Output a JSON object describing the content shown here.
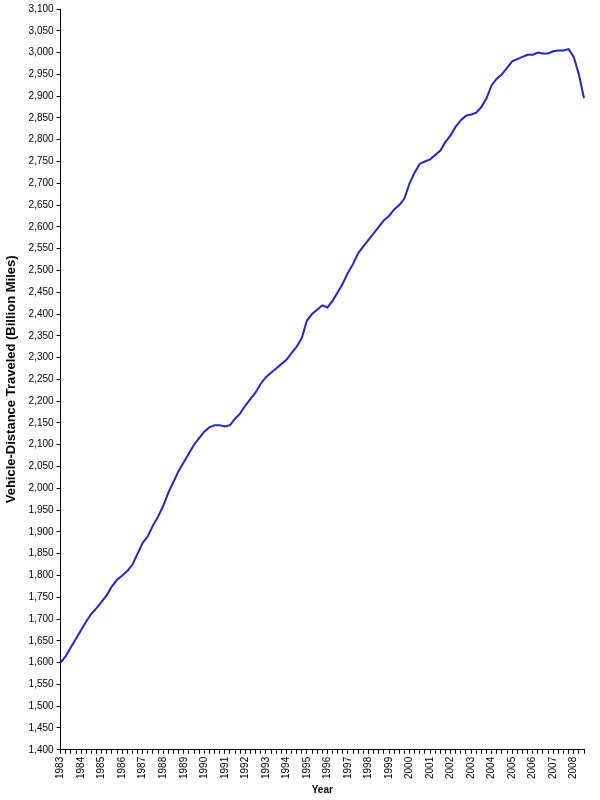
{
  "chart_data": {
    "type": "line",
    "y_label": "Vehicle-Distance Traveled (Billion Miles)",
    "x_label": "Year",
    "color": "#2424d4",
    "grid": false,
    "ylim": [
      1400,
      3100
    ],
    "yticks": [
      {
        "value": 1400,
        "label": "1,400"
      },
      {
        "value": 1450,
        "label": "1,450"
      },
      {
        "value": 1500,
        "label": "1,500"
      },
      {
        "value": 1550,
        "label": "1,550"
      },
      {
        "value": 1600,
        "label": "1,600"
      },
      {
        "value": 1650,
        "label": "1,650"
      },
      {
        "value": 1700,
        "label": "1,700"
      },
      {
        "value": 1750,
        "label": "1,750"
      },
      {
        "value": 1800,
        "label": "1,800"
      },
      {
        "value": 1850,
        "label": "1,850"
      },
      {
        "value": 1900,
        "label": "1,900"
      },
      {
        "value": 1950,
        "label": "1,950"
      },
      {
        "value": 2000,
        "label": "2,000"
      },
      {
        "value": 2050,
        "label": "2,050"
      },
      {
        "value": 2100,
        "label": "2,100"
      },
      {
        "value": 2150,
        "label": "2,150"
      },
      {
        "value": 2200,
        "label": "2,200"
      },
      {
        "value": 2250,
        "label": "2,250"
      },
      {
        "value": 2300,
        "label": "2,300"
      },
      {
        "value": 2350,
        "label": "2,350"
      },
      {
        "value": 2400,
        "label": "2,400"
      },
      {
        "value": 2450,
        "label": "2,450"
      },
      {
        "value": 2500,
        "label": "2,500"
      },
      {
        "value": 2550,
        "label": "2,550"
      },
      {
        "value": 2600,
        "label": "2,600"
      },
      {
        "value": 2650,
        "label": "2,650"
      },
      {
        "value": 2700,
        "label": "2,700"
      },
      {
        "value": 2750,
        "label": "2,750"
      },
      {
        "value": 2800,
        "label": "2,800"
      },
      {
        "value": 2850,
        "label": "2,850"
      },
      {
        "value": 2900,
        "label": "2,900"
      },
      {
        "value": 2950,
        "label": "2,950"
      },
      {
        "value": 3000,
        "label": "3,000"
      },
      {
        "value": 3050,
        "label": "3,050"
      },
      {
        "value": 3100,
        "label": "3,100"
      }
    ],
    "categories": [
      "1983",
      null,
      null,
      null,
      "1984",
      null,
      null,
      null,
      "1985",
      null,
      null,
      null,
      "1986",
      null,
      null,
      null,
      "1987",
      null,
      null,
      null,
      "1988",
      null,
      null,
      null,
      "1989",
      null,
      null,
      null,
      "1990",
      null,
      null,
      null,
      "1991",
      null,
      null,
      null,
      "1992",
      null,
      null,
      null,
      "1993",
      null,
      null,
      null,
      "1994",
      null,
      null,
      null,
      "1995",
      null,
      null,
      null,
      "1996",
      null,
      null,
      null,
      "1997",
      null,
      null,
      null,
      "1998",
      null,
      null,
      null,
      "1999",
      null,
      null,
      null,
      "2000",
      null,
      null,
      null,
      "2001",
      null,
      null,
      null,
      "2002",
      null,
      null,
      null,
      "2003",
      null,
      null,
      null,
      "2004",
      null,
      null,
      null,
      "2005",
      null,
      null,
      null,
      "2006",
      null,
      null,
      null,
      "2007",
      null,
      null,
      null,
      "2008",
      null,
      null
    ],
    "values": [
      1600,
      1615,
      1635,
      1655,
      1675,
      1695,
      1712,
      1725,
      1740,
      1755,
      1775,
      1790,
      1800,
      1810,
      1825,
      1850,
      1875,
      1890,
      1915,
      1935,
      1960,
      1990,
      2015,
      2040,
      2060,
      2080,
      2100,
      2115,
      2130,
      2140,
      2145,
      2145,
      2142,
      2145,
      2160,
      2172,
      2190,
      2205,
      2220,
      2240,
      2255,
      2265,
      2275,
      2285,
      2295,
      2310,
      2325,
      2345,
      2385,
      2400,
      2410,
      2420,
      2415,
      2430,
      2450,
      2470,
      2495,
      2515,
      2540,
      2555,
      2570,
      2585,
      2600,
      2615,
      2625,
      2640,
      2650,
      2665,
      2700,
      2725,
      2745,
      2750,
      2755,
      2765,
      2775,
      2795,
      2810,
      2830,
      2845,
      2855,
      2858,
      2862,
      2875,
      2895,
      2925,
      2940,
      2950,
      2965,
      2980,
      2985,
      2990,
      2995,
      2995,
      3000,
      2998,
      2998,
      3003,
      3005,
      3005,
      3008,
      2990,
      2950,
      2895
    ]
  }
}
